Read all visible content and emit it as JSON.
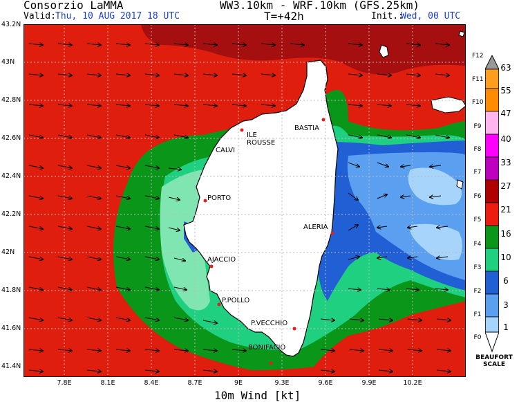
{
  "header": {
    "org": "Consorzio LaMMA",
    "model": "WW3.10km - WRF.10km (GFS.25km)",
    "valid_label": "Valid:",
    "valid_value": "Thu, 10 AUG 2017  18 UTC",
    "step": "T=+42h",
    "init_label": "Init.:",
    "init_value": "Wed, 00 UTC"
  },
  "map": {
    "y_ticks": [
      "43.2N",
      "43N",
      "42.8N",
      "42.6N",
      "42.4N",
      "42.2N",
      "42N",
      "41.8N",
      "41.6N",
      "41.4N"
    ],
    "x_ticks": [
      "7.8E",
      "8.1E",
      "8.4E",
      "8.7E",
      "9E",
      "9.3E",
      "9.6E",
      "9.9E",
      "10.2E"
    ],
    "x_title": "10m Wind [kt]",
    "cities": {
      "ile_rousse_1": "ILE",
      "ile_rousse_2": "ROUSSE",
      "calvi": "CALVI",
      "bastia": "BASTIA",
      "porto": "PORTO",
      "aleria": "ALERIA",
      "ajaccio": "AJACCIO",
      "ppollo": "P.POLLO",
      "pvecchio": "P.VECCHIO",
      "bonifacio": "BONIFACIO"
    },
    "colors": {
      "dark_red": "#a50f0f",
      "red": "#e01e0e",
      "green": "#0a9618",
      "light_green": "#1fd081",
      "pale_green": "#7fe6b2",
      "blue": "#2160d4",
      "light_blue": "#5b9ff0",
      "pale_blue": "#a7d4fa",
      "land": "#ffffff"
    }
  },
  "legend": {
    "beaufort": [
      "F12",
      "F11",
      "F10",
      "F9",
      "F8",
      "F7",
      "F6",
      "F5",
      "F4",
      "F3",
      "F2",
      "F1",
      "F0"
    ],
    "values": [
      "63",
      "55",
      "47",
      "40",
      "33",
      "27",
      "21",
      "16",
      "10",
      "6",
      "3",
      "1"
    ],
    "title_1": "BEAUFORT",
    "title_2": "SCALE",
    "colors": [
      "#999999",
      "#ff9d1c",
      "#ff8c00",
      "#ffb6f0",
      "#ff00ff",
      "#c000c0",
      "#b00000",
      "#ee1c10",
      "#0a9618",
      "#1fd081",
      "#2160d4",
      "#5b9ff0",
      "#a7d4fa",
      "#ffffff"
    ]
  }
}
